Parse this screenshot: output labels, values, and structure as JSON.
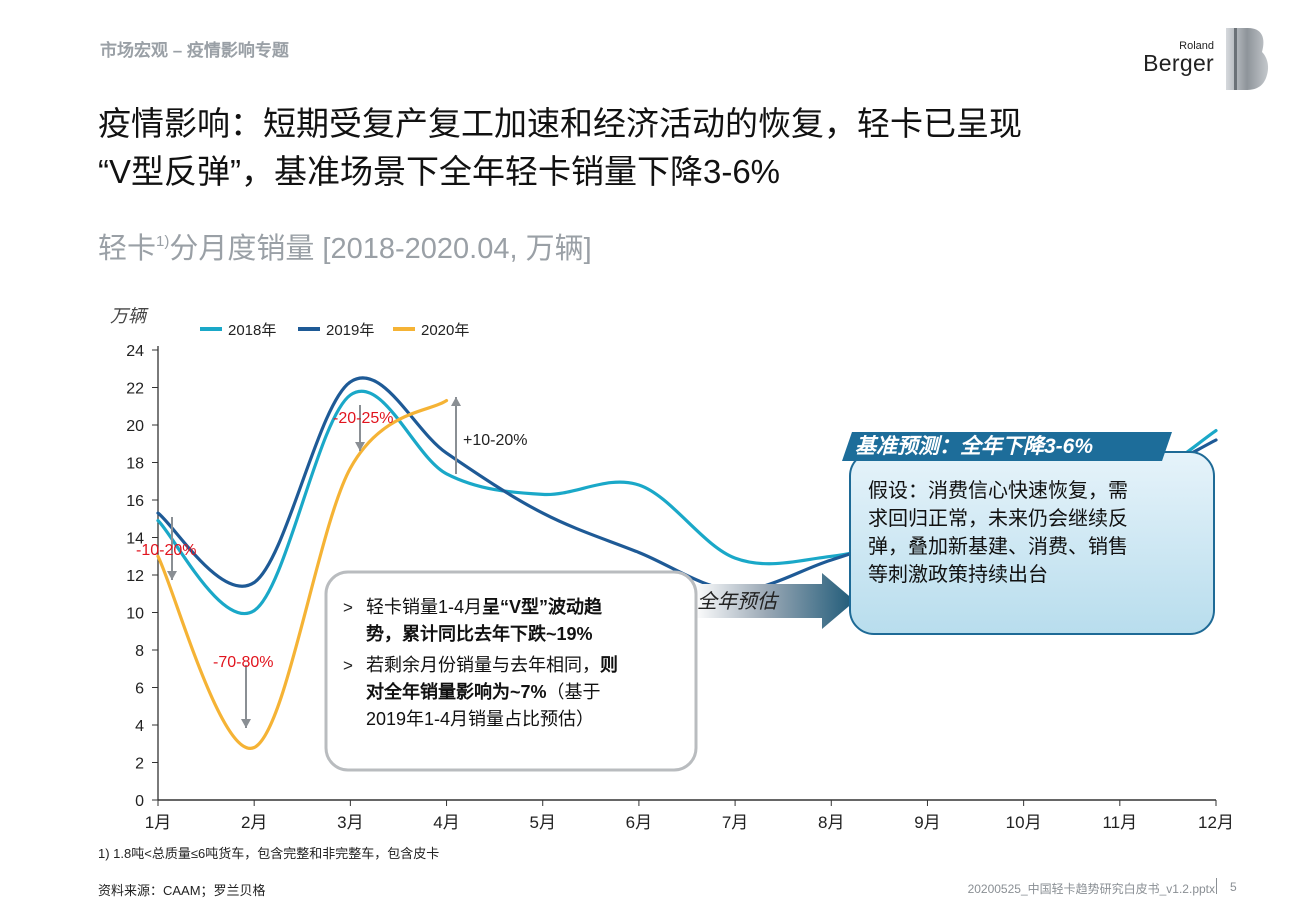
{
  "header": {
    "section": "市场宏观 – 疫情影响专题",
    "logo_top": "Roland",
    "logo_bottom": "Berger"
  },
  "title": {
    "line1": "疫情影响：短期受复产复工加速和经济活动的恢复，轻卡已呈现",
    "line2": "“V型反弹”，基准场景下全年轻卡销量下降3-6%"
  },
  "subtitle": {
    "main": "轻卡",
    "sup": "1)",
    "rest": "分月度销量 [2018-2020.04, 万辆]"
  },
  "chart_data": {
    "type": "line",
    "ylabel": "万辆",
    "ylim": [
      0,
      24
    ],
    "yticks": [
      "0",
      "2",
      "4",
      "6",
      "8",
      "10",
      "12",
      "14",
      "16",
      "18",
      "20",
      "22",
      "24"
    ],
    "categories": [
      "1月",
      "2月",
      "3月",
      "4月",
      "5月",
      "6月",
      "7月",
      "8月",
      "9月",
      "10月",
      "11月",
      "12月"
    ],
    "legend_position": "top",
    "series": [
      {
        "name": "2018年",
        "color": "#1aa8c8",
        "x": [
          1,
          2,
          3,
          4,
          5,
          6,
          7,
          8,
          9,
          10,
          11,
          12
        ],
        "values": [
          14.9,
          10.1,
          21.6,
          17.4,
          16.3,
          16.8,
          12.9,
          13.0,
          14.1,
          14.9,
          16.2,
          19.7
        ]
      },
      {
        "name": "2019年",
        "color": "#1e5a96",
        "x": [
          1,
          2,
          3,
          4,
          5,
          6,
          7,
          8,
          9,
          10,
          11,
          12
        ],
        "values": [
          15.3,
          11.6,
          22.3,
          18.5,
          15.3,
          13.2,
          11.2,
          12.8,
          14.4,
          15.2,
          16.6,
          19.2
        ]
      },
      {
        "name": "2020年",
        "color": "#f5b335",
        "x": [
          1,
          2,
          3,
          4
        ],
        "values": [
          13.0,
          2.8,
          17.7,
          21.3
        ]
      }
    ],
    "annotations": {
      "jan_change": "-10-20%",
      "feb_change": "-70-80%",
      "mar_change": "-20-25%",
      "apr_change": "+10-20%",
      "forecast_arrow": "全年预估"
    },
    "callout_left": {
      "b1_normal": "轻卡销量1-4月",
      "b1_bold": "呈“V型”波动趋势，累计同比去年下跌~19%",
      "b2_normal": "若剩余月份销量与去年相同，",
      "b2_bold": "则对全年销量影响为~7%",
      "b2_tail": "（基于2019年1-4月销量占比预估）"
    },
    "callout_right": {
      "header": "基准预测：全年下降3-6%",
      "body": "假设：消费信心快速恢复，需求回归正常，未来仍会继续反弹，叠加新基建、消费、销售等刺激政策持续出台"
    }
  },
  "footer": {
    "footnote": "1) 1.8吨<总质量≤6吨货车，包含完整和非完整车，包含皮卡",
    "source": "资料来源：CAAM；罗兰贝格",
    "file": "20200525_中国轻卡趋势研究白皮书_v1.2.pptx",
    "page": "5"
  }
}
